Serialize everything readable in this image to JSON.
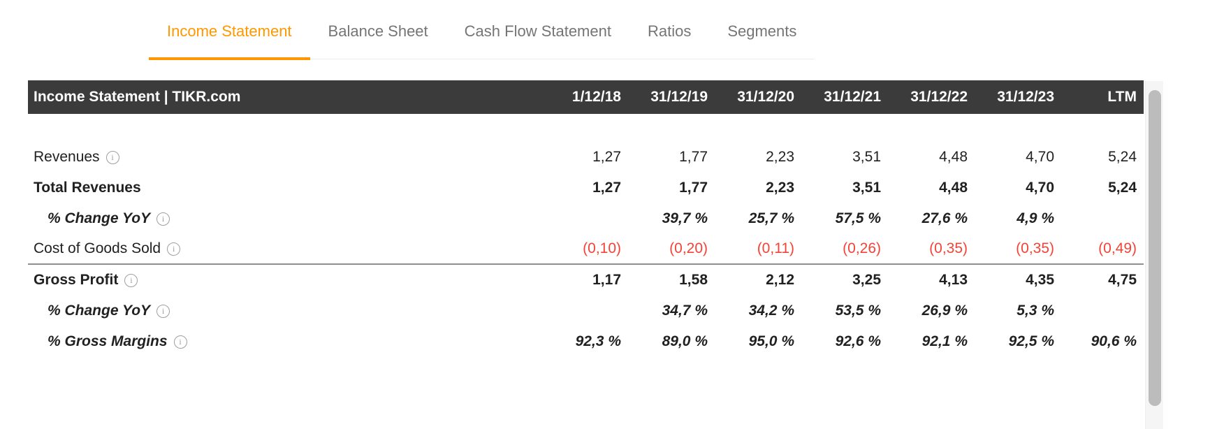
{
  "colors": {
    "accent_orange": "#FF9800",
    "negative_red": "#F44336",
    "header_bg": "#3B3B3B",
    "tab_inactive_gray": "#757575"
  },
  "icons": {
    "info_glyph": "i"
  },
  "tabs": [
    {
      "label": "Income Statement",
      "active": true
    },
    {
      "label": "Balance Sheet",
      "active": false
    },
    {
      "label": "Cash Flow Statement",
      "active": false
    },
    {
      "label": "Ratios",
      "active": false
    },
    {
      "label": "Segments",
      "active": false
    }
  ],
  "table": {
    "title": "Income Statement | TIKR.com",
    "columns": [
      "1/12/18",
      "31/12/19",
      "31/12/20",
      "31/12/21",
      "31/12/22",
      "31/12/23",
      "LTM"
    ],
    "rows": [
      {
        "label": "Revenues",
        "has_info": true,
        "emphasis": "normal",
        "negative": false,
        "indent": false,
        "divider_after": false,
        "values": [
          "1,27",
          "1,77",
          "2,23",
          "3,51",
          "4,48",
          "4,70",
          "5,24"
        ]
      },
      {
        "label": "Total Revenues",
        "has_info": false,
        "emphasis": "bold",
        "negative": false,
        "indent": false,
        "divider_after": false,
        "values": [
          "1,27",
          "1,77",
          "2,23",
          "3,51",
          "4,48",
          "4,70",
          "5,24"
        ]
      },
      {
        "label": "% Change YoY",
        "has_info": true,
        "emphasis": "percent",
        "negative": false,
        "indent": true,
        "divider_after": false,
        "values": [
          "",
          "39,7 %",
          "25,7 %",
          "57,5 %",
          "27,6 %",
          "4,9 %",
          ""
        ]
      },
      {
        "label": "Cost of Goods Sold",
        "has_info": true,
        "emphasis": "normal",
        "negative": true,
        "indent": false,
        "divider_after": true,
        "values": [
          "(0,10)",
          "(0,20)",
          "(0,11)",
          "(0,26)",
          "(0,35)",
          "(0,35)",
          "(0,49)"
        ]
      },
      {
        "label": "Gross Profit",
        "has_info": true,
        "emphasis": "bold",
        "negative": false,
        "indent": false,
        "divider_after": false,
        "values": [
          "1,17",
          "1,58",
          "2,12",
          "3,25",
          "4,13",
          "4,35",
          "4,75"
        ]
      },
      {
        "label": "% Change YoY",
        "has_info": true,
        "emphasis": "percent",
        "negative": false,
        "indent": true,
        "divider_after": false,
        "values": [
          "",
          "34,7 %",
          "34,2 %",
          "53,5 %",
          "26,9 %",
          "5,3 %",
          ""
        ]
      },
      {
        "label": "% Gross Margins",
        "has_info": true,
        "emphasis": "percent",
        "negative": false,
        "indent": true,
        "divider_after": false,
        "values": [
          "92,3 %",
          "89,0 %",
          "95,0 %",
          "92,6 %",
          "92,1 %",
          "92,5 %",
          "90,6 %"
        ]
      }
    ]
  }
}
